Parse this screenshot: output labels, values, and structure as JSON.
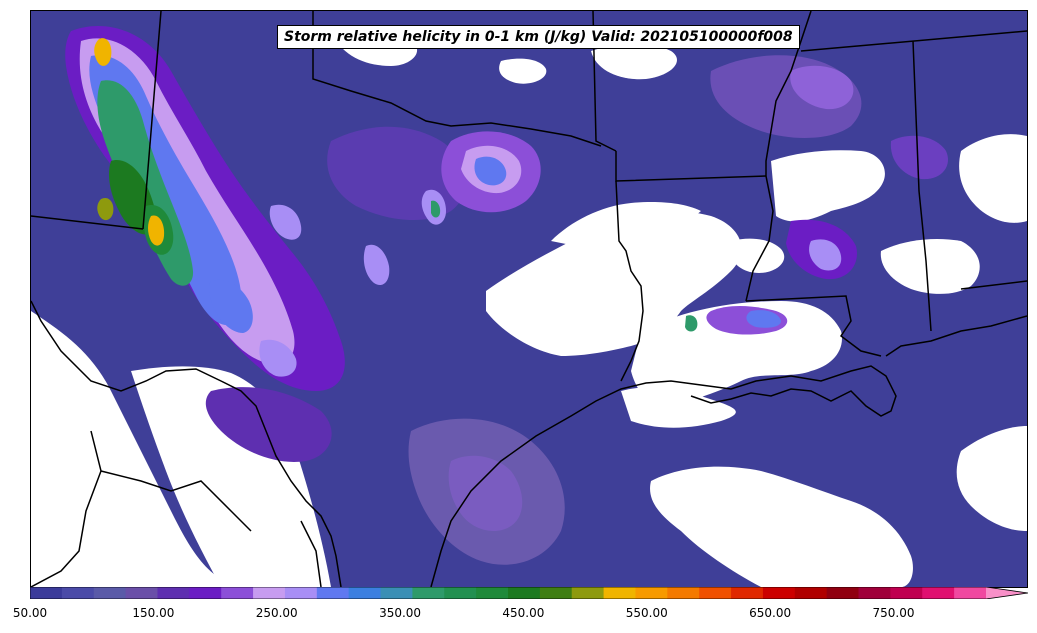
{
  "title": "Storm relative helicity in 0-1 km (J/kg) Valid: 202105100000f008",
  "map": {
    "field": "helicity",
    "region": "south-central-us",
    "background_color": "#ffffff",
    "boundary_color": "#000000"
  },
  "colorbar": {
    "min": 50,
    "max": 825,
    "step": 25,
    "extend": "max",
    "tick_labels": [
      "50.00",
      "150.00",
      "250.00",
      "350.00",
      "450.00",
      "550.00",
      "650.00",
      "750.00"
    ],
    "tick_values": [
      50,
      150,
      250,
      350,
      450,
      550,
      650,
      750
    ],
    "colors": [
      "#3b3b9a",
      "#4b4ba8",
      "#5a5aa8",
      "#6a4fa8",
      "#5e2fb0",
      "#6b1dc4",
      "#8c4fd8",
      "#c79cf0",
      "#a88ef5",
      "#5f78f0",
      "#3b7fe0",
      "#3a8fb5",
      "#2e9a6a",
      "#229050",
      "#1f8a3a",
      "#1c7a20",
      "#3f7e12",
      "#8e9a0e",
      "#f0b400",
      "#f79a00",
      "#f47a00",
      "#f05000",
      "#e02800",
      "#cc0000",
      "#b00000",
      "#900010",
      "#a0003a",
      "#c00050",
      "#e01070",
      "#f048a0",
      "#f890c8"
    ]
  }
}
